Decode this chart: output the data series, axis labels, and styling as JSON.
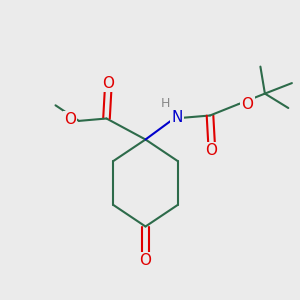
{
  "background_color": "#ebebeb",
  "bond_color": "#2d6b4a",
  "atom_colors": {
    "O": "#e00000",
    "N": "#0000cc",
    "H": "#888888",
    "C": "#2d6b4a"
  },
  "bond_width": 1.5,
  "figsize": [
    3.0,
    3.0
  ],
  "dpi": 100,
  "xlim": [
    0,
    10
  ],
  "ylim": [
    0,
    10
  ]
}
